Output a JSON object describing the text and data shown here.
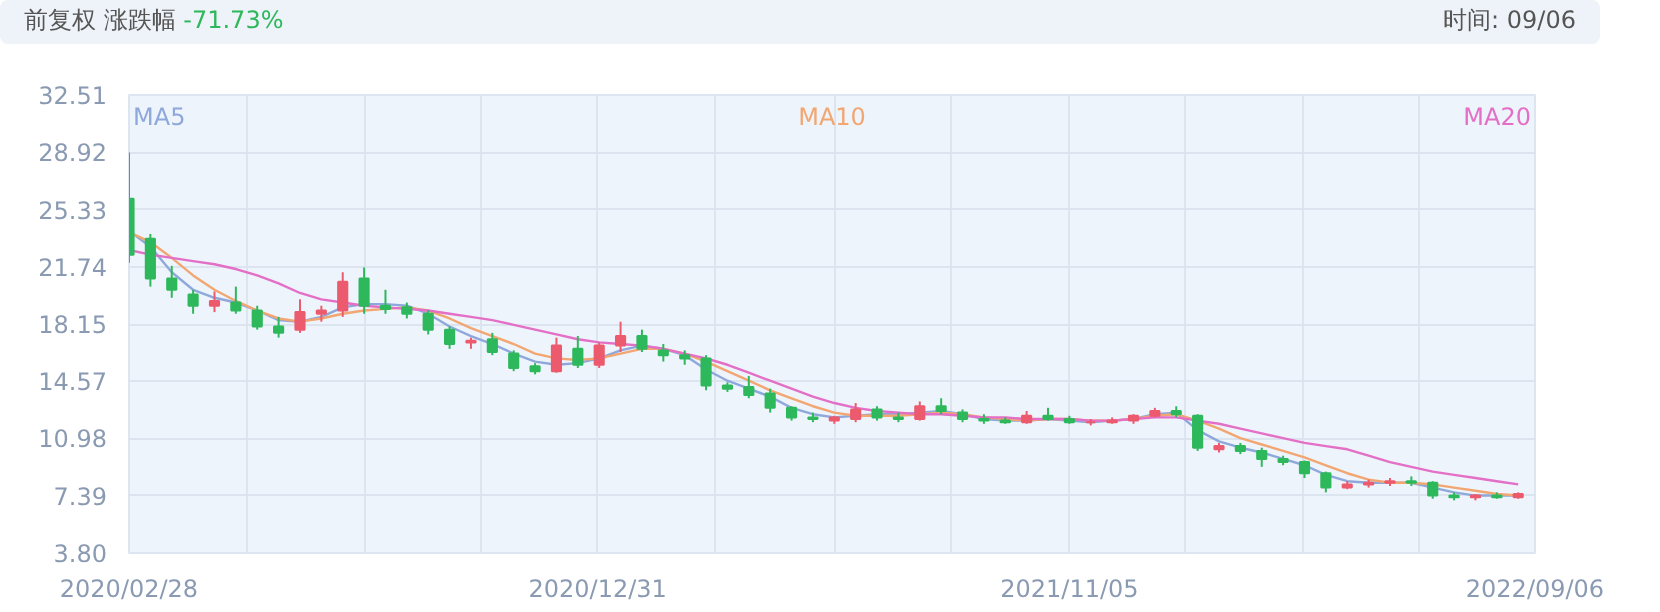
{
  "chart_data": {
    "type": "candlestick",
    "annotations": [
      "前复权 涨跌幅",
      "-71.73%",
      "时间: 09/06"
    ],
    "x": [
      "2020-02-28",
      "2020-03-13",
      "2020-03-27",
      "2020-04-10",
      "2020-04-24",
      "2020-05-08",
      "2020-05-22",
      "2020-06-05",
      "2020-06-19",
      "2020-07-03",
      "2020-07-17",
      "2020-07-31",
      "2020-08-14",
      "2020-08-28",
      "2020-09-11",
      "2020-09-25",
      "2020-10-09",
      "2020-10-23",
      "2020-11-06",
      "2020-11-20",
      "2020-12-04",
      "2020-12-18",
      "2021-01-01",
      "2021-01-15",
      "2021-01-29",
      "2021-02-12",
      "2021-02-26",
      "2021-03-12",
      "2021-03-26",
      "2021-04-09",
      "2021-04-23",
      "2021-05-07",
      "2021-05-21",
      "2021-06-04",
      "2021-06-18",
      "2021-07-02",
      "2021-07-16",
      "2021-07-30",
      "2021-08-13",
      "2021-08-27",
      "2021-09-10",
      "2021-09-24",
      "2021-10-08",
      "2021-10-22",
      "2021-11-05",
      "2021-11-19",
      "2021-12-03",
      "2021-12-17",
      "2021-12-31",
      "2022-01-14",
      "2022-01-28",
      "2022-02-11",
      "2022-02-25",
      "2022-03-11",
      "2022-03-25",
      "2022-04-08",
      "2022-04-22",
      "2022-05-06",
      "2022-05-20",
      "2022-06-03",
      "2022-06-17",
      "2022-07-01",
      "2022-07-15",
      "2022-07-29",
      "2022-08-12",
      "2022-08-26"
    ],
    "ohlc": [
      [
        26,
        28.9,
        22,
        22.5
      ],
      [
        23.5,
        23.8,
        20.5,
        21
      ],
      [
        21,
        21.8,
        19.8,
        20.3
      ],
      [
        20,
        20.3,
        18.8,
        19.3
      ],
      [
        19.3,
        20.2,
        18.9,
        19.6
      ],
      [
        19.5,
        20.5,
        18.8,
        19
      ],
      [
        19,
        19.3,
        17.8,
        18
      ],
      [
        18,
        18.6,
        17.3,
        17.6
      ],
      [
        17.8,
        19.7,
        17.6,
        18.9
      ],
      [
        18.8,
        19.3,
        18.3,
        19
      ],
      [
        19,
        21.4,
        18.6,
        20.8
      ],
      [
        21,
        21.7,
        18.8,
        19.3
      ],
      [
        19.3,
        20.3,
        18.8,
        19.1
      ],
      [
        19.2,
        19.5,
        18.5,
        18.8
      ],
      [
        18.8,
        19,
        17.5,
        17.8
      ],
      [
        17.8,
        18,
        16.6,
        16.9
      ],
      [
        17,
        17.3,
        16.6,
        17.1
      ],
      [
        17.2,
        17.6,
        16.2,
        16.4
      ],
      [
        16.3,
        16.5,
        15.2,
        15.4
      ],
      [
        15.5,
        15.7,
        15,
        15.2
      ],
      [
        15.2,
        17.3,
        15.1,
        16.8
      ],
      [
        16.6,
        17.4,
        15.4,
        15.6
      ],
      [
        15.6,
        17,
        15.4,
        16.8
      ],
      [
        16.8,
        18.3,
        16.4,
        17.4
      ],
      [
        17.4,
        17.8,
        16.4,
        16.6
      ],
      [
        16.5,
        16.9,
        15.8,
        16.2
      ],
      [
        16.2,
        16.5,
        15.6,
        16
      ],
      [
        16,
        16.2,
        14,
        14.3
      ],
      [
        14.3,
        14.5,
        13.9,
        14.1
      ],
      [
        14.2,
        14.9,
        13.5,
        13.7
      ],
      [
        13.8,
        14.1,
        12.6,
        12.9
      ],
      [
        12.9,
        13,
        12.1,
        12.3
      ],
      [
        12.3,
        12.6,
        12,
        12.2
      ],
      [
        12.1,
        12.4,
        11.9,
        12.3
      ],
      [
        12.2,
        13.2,
        12,
        12.8
      ],
      [
        12.8,
        13,
        12.1,
        12.3
      ],
      [
        12.3,
        12.6,
        12,
        12.2
      ],
      [
        12.2,
        13.3,
        12.1,
        13
      ],
      [
        13,
        13.5,
        12.5,
        12.7
      ],
      [
        12.6,
        12.8,
        12,
        12.2
      ],
      [
        12.2,
        12.5,
        11.9,
        12.1
      ],
      [
        12.1,
        12.3,
        11.9,
        12
      ],
      [
        12,
        12.7,
        11.9,
        12.4
      ],
      [
        12.4,
        12.9,
        12.1,
        12.2
      ],
      [
        12.2,
        12.4,
        11.9,
        12
      ],
      [
        12,
        12.2,
        11.8,
        12
      ],
      [
        12,
        12.3,
        11.9,
        12.1
      ],
      [
        12.1,
        12.5,
        11.9,
        12.4
      ],
      [
        12.4,
        12.9,
        12.3,
        12.7
      ],
      [
        12.7,
        13,
        12.3,
        12.5
      ],
      [
        12.4,
        12.5,
        10.2,
        10.4
      ],
      [
        10.3,
        10.7,
        10.1,
        10.5
      ],
      [
        10.5,
        10.7,
        10,
        10.2
      ],
      [
        10.2,
        10.4,
        9.2,
        9.7
      ],
      [
        9.7,
        9.9,
        9.3,
        9.5
      ],
      [
        9.5,
        9.6,
        8.5,
        8.8
      ],
      [
        8.8,
        8.9,
        7.6,
        7.9
      ],
      [
        7.9,
        8.3,
        7.8,
        8.1
      ],
      [
        8.1,
        8.4,
        7.9,
        8.2
      ],
      [
        8.2,
        8.5,
        8,
        8.3
      ],
      [
        8.3,
        8.6,
        8,
        8.2
      ],
      [
        8.2,
        8.3,
        7.2,
        7.4
      ],
      [
        7.4,
        7.6,
        7.1,
        7.3
      ],
      [
        7.3,
        7.5,
        7.1,
        7.4
      ],
      [
        7.4,
        7.6,
        7.2,
        7.3
      ],
      [
        7.3,
        7.6,
        7.2,
        7.5
      ]
    ],
    "colors": [
      "#2eb85c",
      "#2eb85c",
      "#2eb85c",
      "#2eb85c",
      "#ec5a6e",
      "#2eb85c",
      "#2eb85c",
      "#2eb85c",
      "#ec5a6e",
      "#ec5a6e",
      "#ec5a6e",
      "#2eb85c",
      "#2eb85c",
      "#2eb85c",
      "#2eb85c",
      "#2eb85c",
      "#ec5a6e",
      "#2eb85c",
      "#2eb85c",
      "#2eb85c",
      "#ec5a6e",
      "#2eb85c",
      "#ec5a6e",
      "#ec5a6e",
      "#2eb85c",
      "#2eb85c",
      "#2eb85c",
      "#2eb85c",
      "#2eb85c",
      "#2eb85c",
      "#2eb85c",
      "#2eb85c",
      "#2eb85c",
      "#ec5a6e",
      "#ec5a6e",
      "#2eb85c",
      "#2eb85c",
      "#ec5a6e",
      "#2eb85c",
      "#2eb85c",
      "#2eb85c",
      "#2eb85c",
      "#ec5a6e",
      "#2eb85c",
      "#2eb85c",
      "#ec5a6e",
      "#ec5a6e",
      "#ec5a6e",
      "#ec5a6e",
      "#2eb85c",
      "#2eb85c",
      "#ec5a6e",
      "#2eb85c",
      "#2eb85c",
      "#2eb85c",
      "#2eb85c",
      "#2eb85c",
      "#ec5a6e",
      "#ec5a6e",
      "#ec5a6e",
      "#2eb85c",
      "#2eb85c",
      "#2eb85c",
      "#ec5a6e",
      "#2eb85c",
      "#ec5a6e"
    ],
    "series": [
      {
        "type": "line",
        "name": "MA5",
        "color": "#8fa8dc",
        "values": [
          24.0,
          23.0,
          21.4,
          20.3,
          19.8,
          19.5,
          19.0,
          18.4,
          18.3,
          18.6,
          19.2,
          19.4,
          19.4,
          19.3,
          18.8,
          18.0,
          17.4,
          16.9,
          16.3,
          15.8,
          15.6,
          15.7,
          16.0,
          16.5,
          16.8,
          16.6,
          16.2,
          15.3,
          14.6,
          14.1,
          13.6,
          12.9,
          12.5,
          12.3,
          12.4,
          12.5,
          12.5,
          12.6,
          12.7,
          12.5,
          12.2,
          12.1,
          12.1,
          12.2,
          12.1,
          12.0,
          12.1,
          12.2,
          12.5,
          12.6,
          11.5,
          10.8,
          10.4,
          10.1,
          9.7,
          9.3,
          8.7,
          8.3,
          8.2,
          8.2,
          8.2,
          7.9,
          7.6,
          7.4,
          7.4,
          7.4
        ]
      },
      {
        "type": "line",
        "name": "MA10",
        "color": "#f2a672",
        "values": [
          23.9,
          23.3,
          22.3,
          21.2,
          20.3,
          19.6,
          19.0,
          18.5,
          18.3,
          18.5,
          18.8,
          19.0,
          19.1,
          19.2,
          19.0,
          18.5,
          17.9,
          17.4,
          16.9,
          16.3,
          16.0,
          15.9,
          16.0,
          16.3,
          16.6,
          16.6,
          16.3,
          15.8,
          15.2,
          14.6,
          14.0,
          13.5,
          13.0,
          12.6,
          12.4,
          12.4,
          12.4,
          12.5,
          12.6,
          12.5,
          12.3,
          12.2,
          12.1,
          12.2,
          12.2,
          12.1,
          12.1,
          12.2,
          12.4,
          12.5,
          12.1,
          11.6,
          11.0,
          10.6,
          10.2,
          9.8,
          9.3,
          8.8,
          8.4,
          8.2,
          8.2,
          8.1,
          7.9,
          7.7,
          7.5,
          7.4
        ]
      },
      {
        "type": "line",
        "name": "MA20",
        "color": "#e36fc6",
        "values": [
          22.8,
          22.5,
          22.3,
          22.1,
          21.9,
          21.6,
          21.2,
          20.7,
          20.1,
          19.7,
          19.5,
          19.3,
          19.2,
          19.1,
          19.0,
          18.8,
          18.6,
          18.4,
          18.1,
          17.8,
          17.5,
          17.2,
          17.0,
          16.9,
          16.8,
          16.6,
          16.3,
          16.0,
          15.6,
          15.1,
          14.6,
          14.1,
          13.6,
          13.2,
          12.9,
          12.7,
          12.6,
          12.5,
          12.5,
          12.4,
          12.3,
          12.3,
          12.2,
          12.2,
          12.2,
          12.1,
          12.1,
          12.2,
          12.3,
          12.3,
          12.1,
          11.9,
          11.6,
          11.3,
          11.0,
          10.7,
          10.5,
          10.3,
          9.9,
          9.5,
          9.2,
          8.9,
          8.7,
          8.5,
          8.3,
          8.1
        ]
      }
    ],
    "xlim": [
      "2020-02-28",
      "2022-09-06"
    ],
    "xticks": [
      {
        "value": "2020-02-28",
        "label": "2020/02/28"
      },
      {
        "value": "2020-05-15",
        "label": null
      },
      {
        "value": "2020-07-31",
        "label": null
      },
      {
        "value": "2020-10-16",
        "label": null
      },
      {
        "value": "2020-12-31",
        "label": "2020/12/31"
      },
      {
        "value": "2021-03-18",
        "label": null
      },
      {
        "value": "2021-06-04",
        "label": null
      },
      {
        "value": "2021-08-20",
        "label": null
      },
      {
        "value": "2021-11-05",
        "label": "2021/11/05"
      },
      {
        "value": "2022-01-20",
        "label": null
      },
      {
        "value": "2022-04-07",
        "label": null
      },
      {
        "value": "2022-06-22",
        "label": null
      },
      {
        "value": "2022-09-06",
        "label": "2022/09/06"
      }
    ],
    "ylim": [
      3.8,
      32.51
    ],
    "yticks": [
      {
        "value": 3.8,
        "label": "3.80"
      },
      {
        "value": 7.39,
        "label": "7.39"
      },
      {
        "value": 10.98,
        "label": "10.98"
      },
      {
        "value": 14.57,
        "label": "14.57"
      },
      {
        "value": 18.15,
        "label": "18.15"
      },
      {
        "value": 21.74,
        "label": "21.74"
      },
      {
        "value": 25.33,
        "label": "25.33"
      },
      {
        "value": 28.92,
        "label": "28.92"
      },
      {
        "value": 32.51,
        "label": "32.51"
      }
    ],
    "grid": true
  }
}
